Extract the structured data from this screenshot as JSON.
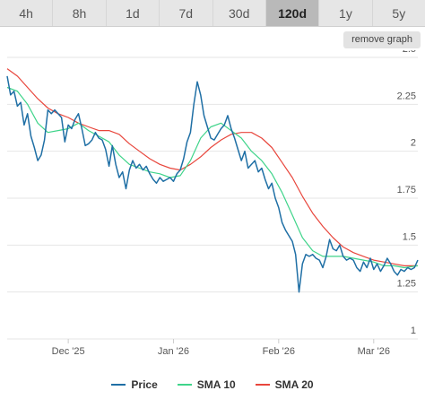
{
  "tabs": [
    {
      "label": "4h",
      "active": false
    },
    {
      "label": "8h",
      "active": false
    },
    {
      "label": "1d",
      "active": false
    },
    {
      "label": "7d",
      "active": false
    },
    {
      "label": "30d",
      "active": false
    },
    {
      "label": "120d",
      "active": true
    },
    {
      "label": "1y",
      "active": false
    },
    {
      "label": "5y",
      "active": false
    }
  ],
  "remove_graph_label": "remove graph",
  "colors": {
    "price": "#1f6fa5",
    "sma10": "#3fd48a",
    "sma20": "#e8463c",
    "grid": "#e6e6e6",
    "axis_text": "#555555"
  },
  "chart_data": {
    "type": "line",
    "title": "",
    "xlabel": "",
    "ylabel": "",
    "ylim": [
      1,
      2.5
    ],
    "xlim": [
      "2025-11-13",
      "2026-03-14"
    ],
    "yticks": [
      1,
      1.25,
      1.5,
      1.75,
      2,
      2.25,
      2.5
    ],
    "ytick_labels": [
      "1",
      "1.25",
      "1.5",
      "1.75",
      "2",
      "2.25",
      "2.5"
    ],
    "xticks": [
      {
        "date": "2025-12-01",
        "label": "Dec '25"
      },
      {
        "date": "2026-01-01",
        "label": "Jan '26"
      },
      {
        "date": "2026-02-01",
        "label": "Feb '26"
      },
      {
        "date": "2026-03-01",
        "label": "Mar '26"
      }
    ],
    "grid": true,
    "legend_position": "bottom",
    "series": [
      {
        "name": "Price",
        "color": "#1f6fa5",
        "points": [
          [
            "2025-11-13",
            2.4
          ],
          [
            "2025-11-14",
            2.3
          ],
          [
            "2025-11-15",
            2.32
          ],
          [
            "2025-11-16",
            2.24
          ],
          [
            "2025-11-17",
            2.26
          ],
          [
            "2025-11-18",
            2.14
          ],
          [
            "2025-11-19",
            2.2
          ],
          [
            "2025-11-20",
            2.08
          ],
          [
            "2025-11-21",
            2.02
          ],
          [
            "2025-11-22",
            1.95
          ],
          [
            "2025-11-23",
            1.98
          ],
          [
            "2025-11-24",
            2.06
          ],
          [
            "2025-11-25",
            2.22
          ],
          [
            "2025-11-26",
            2.2
          ],
          [
            "2025-11-27",
            2.22
          ],
          [
            "2025-11-28",
            2.2
          ],
          [
            "2025-11-29",
            2.18
          ],
          [
            "2025-11-30",
            2.05
          ],
          [
            "2025-12-01",
            2.14
          ],
          [
            "2025-12-02",
            2.12
          ],
          [
            "2025-12-03",
            2.17
          ],
          [
            "2025-12-04",
            2.2
          ],
          [
            "2025-12-05",
            2.12
          ],
          [
            "2025-12-06",
            2.03
          ],
          [
            "2025-12-07",
            2.04
          ],
          [
            "2025-12-08",
            2.06
          ],
          [
            "2025-12-09",
            2.1
          ],
          [
            "2025-12-10",
            2.07
          ],
          [
            "2025-12-11",
            2.06
          ],
          [
            "2025-12-12",
            2.01
          ],
          [
            "2025-12-13",
            1.92
          ],
          [
            "2025-12-14",
            2.03
          ],
          [
            "2025-12-15",
            1.93
          ],
          [
            "2025-12-16",
            1.86
          ],
          [
            "2025-12-17",
            1.89
          ],
          [
            "2025-12-18",
            1.8
          ],
          [
            "2025-12-19",
            1.9
          ],
          [
            "2025-12-20",
            1.95
          ],
          [
            "2025-12-21",
            1.91
          ],
          [
            "2025-12-22",
            1.93
          ],
          [
            "2025-12-23",
            1.9
          ],
          [
            "2025-12-24",
            1.92
          ],
          [
            "2025-12-25",
            1.88
          ],
          [
            "2025-12-26",
            1.85
          ],
          [
            "2025-12-27",
            1.83
          ],
          [
            "2025-12-28",
            1.86
          ],
          [
            "2025-12-29",
            1.84
          ],
          [
            "2025-12-30",
            1.85
          ],
          [
            "2025-12-31",
            1.86
          ],
          [
            "2026-01-01",
            1.84
          ],
          [
            "2026-01-02",
            1.88
          ],
          [
            "2026-01-03",
            1.9
          ],
          [
            "2026-01-04",
            1.96
          ],
          [
            "2026-01-05",
            2.05
          ],
          [
            "2026-01-06",
            2.1
          ],
          [
            "2026-01-07",
            2.25
          ],
          [
            "2026-01-08",
            2.37
          ],
          [
            "2026-01-09",
            2.3
          ],
          [
            "2026-01-10",
            2.19
          ],
          [
            "2026-01-11",
            2.13
          ],
          [
            "2026-01-12",
            2.07
          ],
          [
            "2026-01-13",
            2.06
          ],
          [
            "2026-01-14",
            2.09
          ],
          [
            "2026-01-15",
            2.12
          ],
          [
            "2026-01-16",
            2.14
          ],
          [
            "2026-01-17",
            2.19
          ],
          [
            "2026-01-18",
            2.12
          ],
          [
            "2026-01-19",
            2.07
          ],
          [
            "2026-01-20",
            2.01
          ],
          [
            "2026-01-21",
            1.95
          ],
          [
            "2026-01-22",
            2.0
          ],
          [
            "2026-01-23",
            1.91
          ],
          [
            "2026-01-24",
            1.93
          ],
          [
            "2026-01-25",
            1.95
          ],
          [
            "2026-01-26",
            1.89
          ],
          [
            "2026-01-27",
            1.91
          ],
          [
            "2026-01-28",
            1.85
          ],
          [
            "2026-01-29",
            1.8
          ],
          [
            "2026-01-30",
            1.83
          ],
          [
            "2026-01-31",
            1.75
          ],
          [
            "2026-02-01",
            1.7
          ],
          [
            "2026-02-02",
            1.62
          ],
          [
            "2026-02-03",
            1.58
          ],
          [
            "2026-02-04",
            1.55
          ],
          [
            "2026-02-05",
            1.52
          ],
          [
            "2026-02-06",
            1.45
          ],
          [
            "2026-02-07",
            1.25
          ],
          [
            "2026-02-08",
            1.4
          ],
          [
            "2026-02-09",
            1.45
          ],
          [
            "2026-02-10",
            1.44
          ],
          [
            "2026-02-11",
            1.45
          ],
          [
            "2026-02-12",
            1.43
          ],
          [
            "2026-02-13",
            1.42
          ],
          [
            "2026-02-14",
            1.38
          ],
          [
            "2026-02-15",
            1.44
          ],
          [
            "2026-02-16",
            1.53
          ],
          [
            "2026-02-17",
            1.48
          ],
          [
            "2026-02-18",
            1.47
          ],
          [
            "2026-02-19",
            1.5
          ],
          [
            "2026-02-20",
            1.44
          ],
          [
            "2026-02-21",
            1.42
          ],
          [
            "2026-02-22",
            1.43
          ],
          [
            "2026-02-23",
            1.42
          ],
          [
            "2026-02-24",
            1.38
          ],
          [
            "2026-02-25",
            1.36
          ],
          [
            "2026-02-26",
            1.41
          ],
          [
            "2026-02-27",
            1.38
          ],
          [
            "2026-02-28",
            1.43
          ],
          [
            "2026-03-01",
            1.37
          ],
          [
            "2026-03-02",
            1.4
          ],
          [
            "2026-03-03",
            1.36
          ],
          [
            "2026-03-04",
            1.39
          ],
          [
            "2026-03-05",
            1.43
          ],
          [
            "2026-03-06",
            1.4
          ],
          [
            "2026-03-07",
            1.36
          ],
          [
            "2026-03-08",
            1.34
          ],
          [
            "2026-03-09",
            1.37
          ],
          [
            "2026-03-10",
            1.36
          ],
          [
            "2026-03-11",
            1.38
          ],
          [
            "2026-03-12",
            1.37
          ],
          [
            "2026-03-13",
            1.38
          ],
          [
            "2026-03-14",
            1.42
          ]
        ]
      },
      {
        "name": "SMA 10",
        "color": "#3fd48a",
        "points": [
          [
            "2025-11-13",
            2.34
          ],
          [
            "2025-11-16",
            2.32
          ],
          [
            "2025-11-19",
            2.25
          ],
          [
            "2025-11-22",
            2.15
          ],
          [
            "2025-11-25",
            2.1
          ],
          [
            "2025-11-28",
            2.11
          ],
          [
            "2025-12-01",
            2.12
          ],
          [
            "2025-12-04",
            2.15
          ],
          [
            "2025-12-07",
            2.11
          ],
          [
            "2025-12-10",
            2.08
          ],
          [
            "2025-12-13",
            2.05
          ],
          [
            "2025-12-16",
            1.98
          ],
          [
            "2025-12-19",
            1.93
          ],
          [
            "2025-12-22",
            1.91
          ],
          [
            "2025-12-25",
            1.89
          ],
          [
            "2025-12-28",
            1.88
          ],
          [
            "2025-12-31",
            1.86
          ],
          [
            "2026-01-03",
            1.87
          ],
          [
            "2026-01-06",
            1.95
          ],
          [
            "2026-01-09",
            2.07
          ],
          [
            "2026-01-12",
            2.13
          ],
          [
            "2026-01-15",
            2.15
          ],
          [
            "2026-01-18",
            2.11
          ],
          [
            "2026-01-21",
            2.07
          ],
          [
            "2026-01-24",
            2.0
          ],
          [
            "2026-01-27",
            1.95
          ],
          [
            "2026-01-30",
            1.88
          ],
          [
            "2026-02-02",
            1.78
          ],
          [
            "2026-02-05",
            1.66
          ],
          [
            "2026-02-08",
            1.54
          ],
          [
            "2026-02-11",
            1.47
          ],
          [
            "2026-02-14",
            1.44
          ],
          [
            "2026-02-17",
            1.44
          ],
          [
            "2026-02-20",
            1.44
          ],
          [
            "2026-02-23",
            1.43
          ],
          [
            "2026-02-26",
            1.42
          ],
          [
            "2026-03-01",
            1.41
          ],
          [
            "2026-03-04",
            1.39
          ],
          [
            "2026-03-07",
            1.39
          ],
          [
            "2026-03-10",
            1.38
          ],
          [
            "2026-03-14",
            1.39
          ]
        ]
      },
      {
        "name": "SMA 20",
        "color": "#e8463c",
        "points": [
          [
            "2025-11-13",
            2.44
          ],
          [
            "2025-11-16",
            2.4
          ],
          [
            "2025-11-19",
            2.34
          ],
          [
            "2025-11-22",
            2.28
          ],
          [
            "2025-11-25",
            2.23
          ],
          [
            "2025-11-28",
            2.2
          ],
          [
            "2025-12-01",
            2.18
          ],
          [
            "2025-12-04",
            2.15
          ],
          [
            "2025-12-07",
            2.13
          ],
          [
            "2025-12-10",
            2.11
          ],
          [
            "2025-12-13",
            2.11
          ],
          [
            "2025-12-16",
            2.09
          ],
          [
            "2025-12-19",
            2.04
          ],
          [
            "2025-12-22",
            2.0
          ],
          [
            "2025-12-25",
            1.96
          ],
          [
            "2025-12-28",
            1.93
          ],
          [
            "2025-12-31",
            1.91
          ],
          [
            "2026-01-03",
            1.9
          ],
          [
            "2026-01-06",
            1.93
          ],
          [
            "2026-01-09",
            1.97
          ],
          [
            "2026-01-12",
            2.02
          ],
          [
            "2026-01-15",
            2.06
          ],
          [
            "2026-01-18",
            2.09
          ],
          [
            "2026-01-21",
            2.1
          ],
          [
            "2026-01-24",
            2.1
          ],
          [
            "2026-01-27",
            2.07
          ],
          [
            "2026-01-30",
            2.02
          ],
          [
            "2026-02-02",
            1.94
          ],
          [
            "2026-02-05",
            1.86
          ],
          [
            "2026-02-08",
            1.76
          ],
          [
            "2026-02-11",
            1.67
          ],
          [
            "2026-02-14",
            1.6
          ],
          [
            "2026-02-17",
            1.54
          ],
          [
            "2026-02-20",
            1.49
          ],
          [
            "2026-02-23",
            1.46
          ],
          [
            "2026-02-26",
            1.44
          ],
          [
            "2026-03-01",
            1.42
          ],
          [
            "2026-03-04",
            1.41
          ],
          [
            "2026-03-07",
            1.4
          ],
          [
            "2026-03-10",
            1.39
          ],
          [
            "2026-03-14",
            1.39
          ]
        ]
      }
    ]
  }
}
